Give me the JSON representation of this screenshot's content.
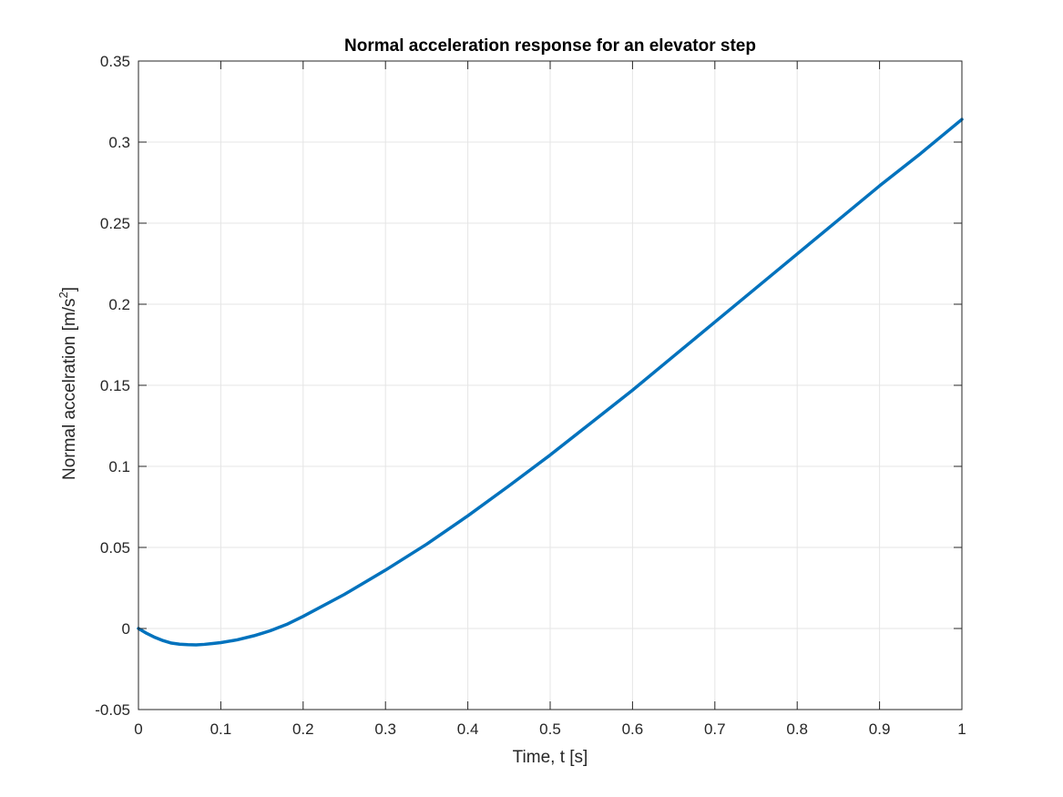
{
  "chart_data": {
    "type": "line",
    "title": "Normal acceleration response for an elevator step",
    "xlabel": "Time, t [s]",
    "ylabel_main": "Normal accelration [m/s",
    "ylabel_sup": "2",
    "ylabel_close": "]",
    "xlim": [
      0,
      1
    ],
    "ylim": [
      -0.05,
      0.35
    ],
    "grid": true,
    "xticks": [
      0,
      0.1,
      0.2,
      0.3,
      0.4,
      0.5,
      0.6,
      0.7,
      0.8,
      0.9,
      1
    ],
    "xtick_labels": [
      "0",
      "0.1",
      "0.2",
      "0.3",
      "0.4",
      "0.5",
      "0.6",
      "0.7",
      "0.8",
      "0.9",
      "1"
    ],
    "yticks": [
      -0.05,
      0,
      0.05,
      0.1,
      0.15,
      0.2,
      0.25,
      0.3,
      0.35
    ],
    "ytick_labels": [
      "-0.05",
      "0",
      "0.05",
      "0.1",
      "0.15",
      "0.2",
      "0.25",
      "0.3",
      "0.35"
    ],
    "series": [
      {
        "color": "#0072bd",
        "x": [
          0,
          0.01,
          0.02,
          0.03,
          0.04,
          0.05,
          0.06,
          0.07,
          0.08,
          0.09,
          0.1,
          0.12,
          0.14,
          0.15,
          0.16,
          0.18,
          0.2,
          0.25,
          0.3,
          0.35,
          0.4,
          0.45,
          0.5,
          0.55,
          0.6,
          0.65,
          0.7,
          0.75,
          0.8,
          0.85,
          0.9,
          0.95,
          1.0
        ],
        "y": [
          0,
          -0.003,
          -0.0055,
          -0.0075,
          -0.009,
          -0.0097,
          -0.01,
          -0.0101,
          -0.0098,
          -0.0093,
          -0.0087,
          -0.007,
          -0.0045,
          -0.003,
          -0.0014,
          0.0025,
          0.0075,
          0.021,
          0.036,
          0.052,
          0.0695,
          0.088,
          0.107,
          0.127,
          0.147,
          0.168,
          0.189,
          0.21,
          0.231,
          0.252,
          0.273,
          0.293,
          0.314
        ]
      }
    ]
  }
}
